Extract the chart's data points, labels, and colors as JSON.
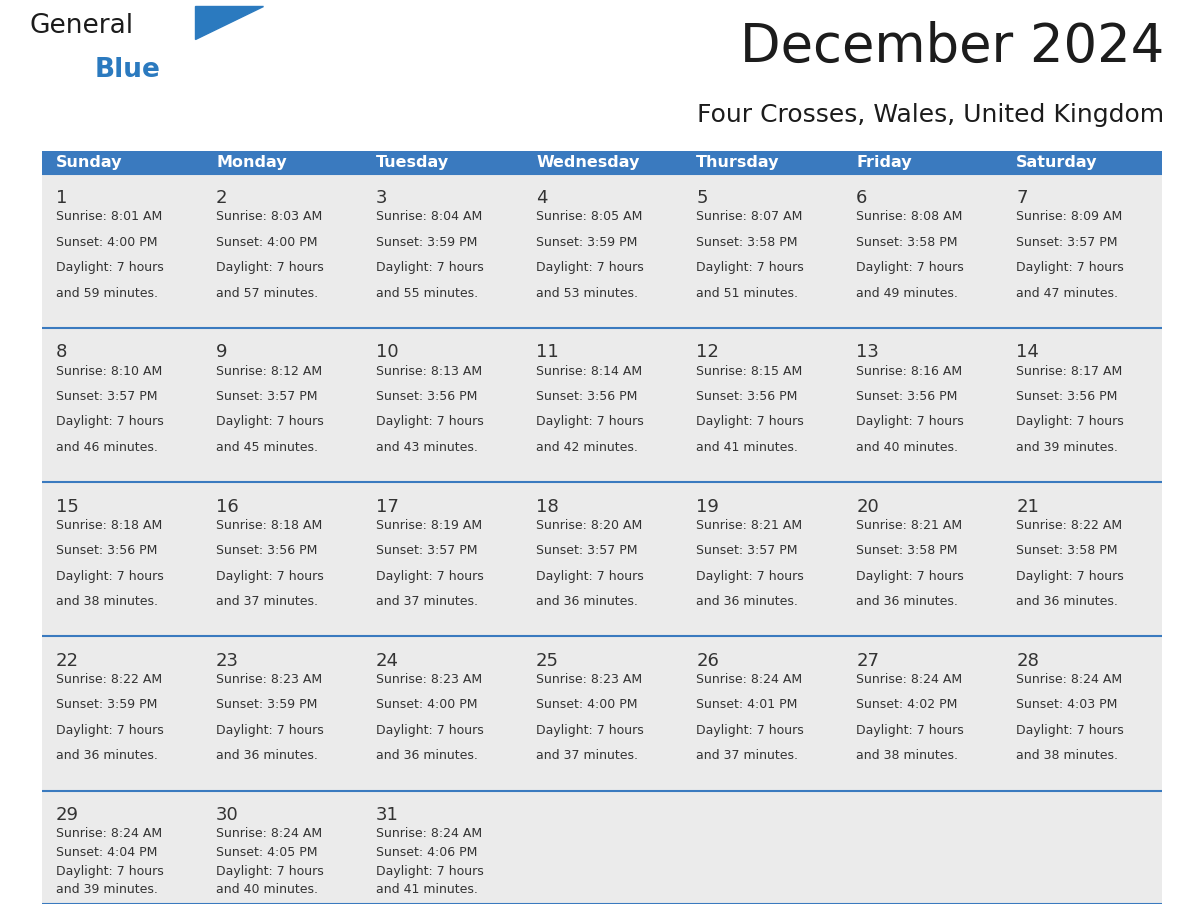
{
  "title": "December 2024",
  "subtitle": "Four Crosses, Wales, United Kingdom",
  "header_color": "#3a7abf",
  "header_text_color": "#ffffff",
  "cell_bg_color": "#ebebeb",
  "border_color": "#3a7abf",
  "text_color": "#333333",
  "days_of_week": [
    "Sunday",
    "Monday",
    "Tuesday",
    "Wednesday",
    "Thursday",
    "Friday",
    "Saturday"
  ],
  "weeks": [
    [
      {
        "day": 1,
        "sunrise": "8:01 AM",
        "sunset": "4:00 PM",
        "daylight_l1": "Daylight: 7 hours",
        "daylight_l2": "and 59 minutes."
      },
      {
        "day": 2,
        "sunrise": "8:03 AM",
        "sunset": "4:00 PM",
        "daylight_l1": "Daylight: 7 hours",
        "daylight_l2": "and 57 minutes."
      },
      {
        "day": 3,
        "sunrise": "8:04 AM",
        "sunset": "3:59 PM",
        "daylight_l1": "Daylight: 7 hours",
        "daylight_l2": "and 55 minutes."
      },
      {
        "day": 4,
        "sunrise": "8:05 AM",
        "sunset": "3:59 PM",
        "daylight_l1": "Daylight: 7 hours",
        "daylight_l2": "and 53 minutes."
      },
      {
        "day": 5,
        "sunrise": "8:07 AM",
        "sunset": "3:58 PM",
        "daylight_l1": "Daylight: 7 hours",
        "daylight_l2": "and 51 minutes."
      },
      {
        "day": 6,
        "sunrise": "8:08 AM",
        "sunset": "3:58 PM",
        "daylight_l1": "Daylight: 7 hours",
        "daylight_l2": "and 49 minutes."
      },
      {
        "day": 7,
        "sunrise": "8:09 AM",
        "sunset": "3:57 PM",
        "daylight_l1": "Daylight: 7 hours",
        "daylight_l2": "and 47 minutes."
      }
    ],
    [
      {
        "day": 8,
        "sunrise": "8:10 AM",
        "sunset": "3:57 PM",
        "daylight_l1": "Daylight: 7 hours",
        "daylight_l2": "and 46 minutes."
      },
      {
        "day": 9,
        "sunrise": "8:12 AM",
        "sunset": "3:57 PM",
        "daylight_l1": "Daylight: 7 hours",
        "daylight_l2": "and 45 minutes."
      },
      {
        "day": 10,
        "sunrise": "8:13 AM",
        "sunset": "3:56 PM",
        "daylight_l1": "Daylight: 7 hours",
        "daylight_l2": "and 43 minutes."
      },
      {
        "day": 11,
        "sunrise": "8:14 AM",
        "sunset": "3:56 PM",
        "daylight_l1": "Daylight: 7 hours",
        "daylight_l2": "and 42 minutes."
      },
      {
        "day": 12,
        "sunrise": "8:15 AM",
        "sunset": "3:56 PM",
        "daylight_l1": "Daylight: 7 hours",
        "daylight_l2": "and 41 minutes."
      },
      {
        "day": 13,
        "sunrise": "8:16 AM",
        "sunset": "3:56 PM",
        "daylight_l1": "Daylight: 7 hours",
        "daylight_l2": "and 40 minutes."
      },
      {
        "day": 14,
        "sunrise": "8:17 AM",
        "sunset": "3:56 PM",
        "daylight_l1": "Daylight: 7 hours",
        "daylight_l2": "and 39 minutes."
      }
    ],
    [
      {
        "day": 15,
        "sunrise": "8:18 AM",
        "sunset": "3:56 PM",
        "daylight_l1": "Daylight: 7 hours",
        "daylight_l2": "and 38 minutes."
      },
      {
        "day": 16,
        "sunrise": "8:18 AM",
        "sunset": "3:56 PM",
        "daylight_l1": "Daylight: 7 hours",
        "daylight_l2": "and 37 minutes."
      },
      {
        "day": 17,
        "sunrise": "8:19 AM",
        "sunset": "3:57 PM",
        "daylight_l1": "Daylight: 7 hours",
        "daylight_l2": "and 37 minutes."
      },
      {
        "day": 18,
        "sunrise": "8:20 AM",
        "sunset": "3:57 PM",
        "daylight_l1": "Daylight: 7 hours",
        "daylight_l2": "and 36 minutes."
      },
      {
        "day": 19,
        "sunrise": "8:21 AM",
        "sunset": "3:57 PM",
        "daylight_l1": "Daylight: 7 hours",
        "daylight_l2": "and 36 minutes."
      },
      {
        "day": 20,
        "sunrise": "8:21 AM",
        "sunset": "3:58 PM",
        "daylight_l1": "Daylight: 7 hours",
        "daylight_l2": "and 36 minutes."
      },
      {
        "day": 21,
        "sunrise": "8:22 AM",
        "sunset": "3:58 PM",
        "daylight_l1": "Daylight: 7 hours",
        "daylight_l2": "and 36 minutes."
      }
    ],
    [
      {
        "day": 22,
        "sunrise": "8:22 AM",
        "sunset": "3:59 PM",
        "daylight_l1": "Daylight: 7 hours",
        "daylight_l2": "and 36 minutes."
      },
      {
        "day": 23,
        "sunrise": "8:23 AM",
        "sunset": "3:59 PM",
        "daylight_l1": "Daylight: 7 hours",
        "daylight_l2": "and 36 minutes."
      },
      {
        "day": 24,
        "sunrise": "8:23 AM",
        "sunset": "4:00 PM",
        "daylight_l1": "Daylight: 7 hours",
        "daylight_l2": "and 36 minutes."
      },
      {
        "day": 25,
        "sunrise": "8:23 AM",
        "sunset": "4:00 PM",
        "daylight_l1": "Daylight: 7 hours",
        "daylight_l2": "and 37 minutes."
      },
      {
        "day": 26,
        "sunrise": "8:24 AM",
        "sunset": "4:01 PM",
        "daylight_l1": "Daylight: 7 hours",
        "daylight_l2": "and 37 minutes."
      },
      {
        "day": 27,
        "sunrise": "8:24 AM",
        "sunset": "4:02 PM",
        "daylight_l1": "Daylight: 7 hours",
        "daylight_l2": "and 38 minutes."
      },
      {
        "day": 28,
        "sunrise": "8:24 AM",
        "sunset": "4:03 PM",
        "daylight_l1": "Daylight: 7 hours",
        "daylight_l2": "and 38 minutes."
      }
    ],
    [
      {
        "day": 29,
        "sunrise": "8:24 AM",
        "sunset": "4:04 PM",
        "daylight_l1": "Daylight: 7 hours",
        "daylight_l2": "and 39 minutes."
      },
      {
        "day": 30,
        "sunrise": "8:24 AM",
        "sunset": "4:05 PM",
        "daylight_l1": "Daylight: 7 hours",
        "daylight_l2": "and 40 minutes."
      },
      {
        "day": 31,
        "sunrise": "8:24 AM",
        "sunset": "4:06 PM",
        "daylight_l1": "Daylight: 7 hours",
        "daylight_l2": "and 41 minutes."
      },
      null,
      null,
      null,
      null
    ]
  ]
}
